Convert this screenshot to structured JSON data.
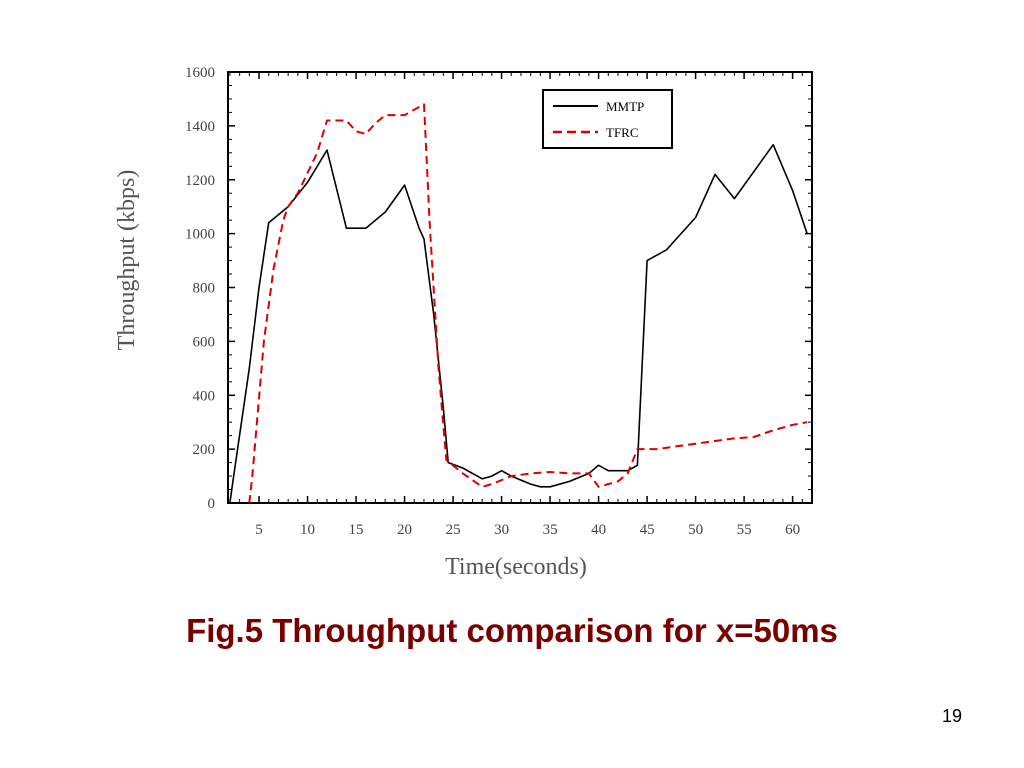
{
  "chart_data": {
    "type": "line",
    "title": "",
    "xlabel": "Time(seconds)",
    "ylabel": "Throughput (kbps)",
    "xlim": [
      1.8,
      62
    ],
    "ylim": [
      0,
      1600
    ],
    "xticks": [
      5,
      10,
      15,
      20,
      25,
      30,
      35,
      40,
      45,
      50,
      55,
      60
    ],
    "yticks": [
      0,
      200,
      400,
      600,
      800,
      1000,
      1200,
      1400,
      1600
    ],
    "grid": false,
    "legend_position": "top-right",
    "series": [
      {
        "name": "MMTP",
        "color": "#000000",
        "dash": "solid",
        "points": [
          [
            2,
            0
          ],
          [
            2.3,
            80
          ],
          [
            4,
            500
          ],
          [
            5,
            800
          ],
          [
            6,
            1040
          ],
          [
            7,
            1070
          ],
          [
            8,
            1100
          ],
          [
            10,
            1190
          ],
          [
            12,
            1310
          ],
          [
            14,
            1020
          ],
          [
            16,
            1020
          ],
          [
            18,
            1080
          ],
          [
            20,
            1180
          ],
          [
            21.5,
            1020
          ],
          [
            22,
            980
          ],
          [
            23,
            700
          ],
          [
            24,
            350
          ],
          [
            24.5,
            150
          ],
          [
            26,
            130
          ],
          [
            28,
            90
          ],
          [
            29,
            100
          ],
          [
            30,
            120
          ],
          [
            31,
            100
          ],
          [
            33,
            70
          ],
          [
            34,
            60
          ],
          [
            35,
            60
          ],
          [
            37,
            80
          ],
          [
            39,
            110
          ],
          [
            40,
            140
          ],
          [
            41,
            120
          ],
          [
            43,
            120
          ],
          [
            44,
            140
          ],
          [
            45,
            900
          ],
          [
            46,
            920
          ],
          [
            47,
            940
          ],
          [
            48,
            980
          ],
          [
            50,
            1060
          ],
          [
            52,
            1220
          ],
          [
            54,
            1130
          ],
          [
            56,
            1230
          ],
          [
            58,
            1330
          ],
          [
            60,
            1160
          ],
          [
            61.5,
            1000
          ]
        ]
      },
      {
        "name": "TFRC",
        "color": "#dd0000",
        "dash": "dashed",
        "points": [
          [
            4,
            0
          ],
          [
            4.3,
            100
          ],
          [
            5.5,
            600
          ],
          [
            6.5,
            870
          ],
          [
            7.5,
            1050
          ],
          [
            8,
            1100
          ],
          [
            9,
            1150
          ],
          [
            11,
            1300
          ],
          [
            12,
            1420
          ],
          [
            14,
            1420
          ],
          [
            15,
            1380
          ],
          [
            16,
            1370
          ],
          [
            17,
            1410
          ],
          [
            18,
            1440
          ],
          [
            20,
            1440
          ],
          [
            22,
            1480
          ],
          [
            22.6,
            1030
          ],
          [
            23.5,
            500
          ],
          [
            24.3,
            160
          ],
          [
            26,
            110
          ],
          [
            28,
            60
          ],
          [
            29,
            70
          ],
          [
            31,
            100
          ],
          [
            33,
            110
          ],
          [
            35,
            115
          ],
          [
            37,
            110
          ],
          [
            39,
            110
          ],
          [
            40,
            60
          ],
          [
            41,
            70
          ],
          [
            42,
            80
          ],
          [
            43,
            110
          ],
          [
            44,
            200
          ],
          [
            46,
            200
          ],
          [
            48,
            210
          ],
          [
            50,
            220
          ],
          [
            52,
            230
          ],
          [
            54,
            240
          ],
          [
            56,
            245
          ],
          [
            58,
            270
          ],
          [
            60,
            290
          ],
          [
            61.5,
            300
          ]
        ]
      }
    ]
  },
  "caption": "Fig.5 Throughput comparison for x=50ms",
  "page_number": "19"
}
